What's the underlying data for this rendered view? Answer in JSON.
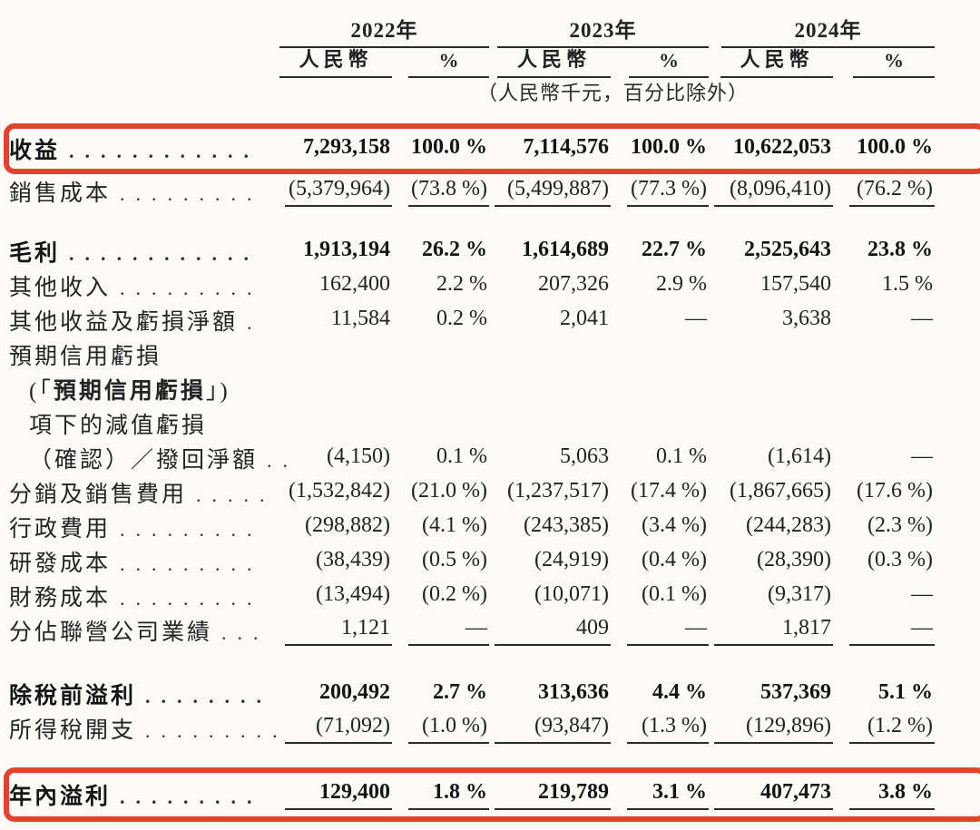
{
  "header": {
    "years": [
      {
        "label": "2022年"
      },
      {
        "label": "2023年"
      },
      {
        "label": "2024年"
      }
    ],
    "sub_rmb": "人民幣",
    "sub_pct": "%",
    "note": "（人民幣千元，百分比除外）"
  },
  "accent_color": "#e2432a",
  "rows": [
    {
      "label": "收益",
      "leader": "............",
      "bold": true,
      "boxed": true,
      "values": [
        "7,293,158",
        "100.0 %",
        "7,114,576",
        "100.0 %",
        "10,622,053",
        "100.0 %"
      ]
    },
    {
      "label": "銷售成本",
      "leader": ".........",
      "underline": true,
      "values": [
        "(5,379,964)",
        "(73.8 %)",
        "(5,499,887)",
        "(77.3 %)",
        "(8,096,410)",
        "(76.2 %)"
      ]
    },
    {
      "type": "spacer",
      "h": 28
    },
    {
      "label": "毛利",
      "leader": "............",
      "bold": true,
      "values": [
        "1,913,194",
        "26.2 %",
        "1,614,689",
        "22.7 %",
        "2,525,643",
        "23.8 %"
      ]
    },
    {
      "label": "其他收入",
      "leader": ".........",
      "values": [
        "162,400",
        "2.2 %",
        "207,326",
        "2.9 %",
        "157,540",
        "1.5 %"
      ]
    },
    {
      "label": "其他收益及虧損淨額",
      "leader": ".",
      "values": [
        "11,584",
        "0.2 %",
        "2,041",
        "—",
        "3,638",
        "—"
      ]
    },
    {
      "label": "預期信用虧損"
    },
    {
      "label_parts": {
        "pre": "(「",
        "bold_text": "預期信用虧損",
        "post": "」)"
      },
      "indent": true
    },
    {
      "label": "項下的減值虧損",
      "indent": true
    },
    {
      "label": "（確認）／撥回淨額",
      "leader": "..",
      "indent": true,
      "values": [
        "(4,150)",
        "0.1 %",
        "5,063",
        "0.1 %",
        "(1,614)",
        "—"
      ]
    },
    {
      "label": "分銷及銷售費用",
      "leader": ".....",
      "values": [
        "(1,532,842)",
        "(21.0 %)",
        "(1,237,517)",
        "(17.4 %)",
        "(1,867,665)",
        "(17.6 %)"
      ]
    },
    {
      "label": "行政費用",
      "leader": ".........",
      "values": [
        "(298,882)",
        "(4.1 %)",
        "(243,385)",
        "(3.4 %)",
        "(244,283)",
        "(2.3 %)"
      ]
    },
    {
      "label": "研發成本",
      "leader": ".........",
      "values": [
        "(38,439)",
        "(0.5 %)",
        "(24,919)",
        "(0.4 %)",
        "(28,390)",
        "(0.3 %)"
      ]
    },
    {
      "label": "財務成本",
      "leader": ".........",
      "values": [
        "(13,494)",
        "(0.2 %)",
        "(10,071)",
        "(0.1 %)",
        "(9,317)",
        "—"
      ]
    },
    {
      "label": "分佔聯營公司業績",
      "leader": "...",
      "underline": true,
      "values": [
        "1,121",
        "—",
        "409",
        "—",
        "1,817",
        "—"
      ]
    },
    {
      "type": "spacer",
      "h": 32
    },
    {
      "label": "除稅前溢利",
      "leader": "........",
      "bold": true,
      "values": [
        "200,492",
        "2.7 %",
        "313,636",
        "4.4 %",
        "537,369",
        "5.1 %"
      ]
    },
    {
      "label": "所得稅開支",
      "leader": ".........",
      "underline": true,
      "values": [
        "(71,092)",
        "(1.0 %)",
        "(93,847)",
        "(1.3 %)",
        "(129,896)",
        "(1.2 %)"
      ]
    },
    {
      "type": "spacer",
      "h": 24
    },
    {
      "label": "年內溢利",
      "leader": ".........",
      "bold": true,
      "boxed": true,
      "tall": true,
      "underline": true,
      "values": [
        "129,400",
        "1.8 %",
        "219,789",
        "3.1 %",
        "407,473",
        "3.8 %"
      ]
    }
  ]
}
